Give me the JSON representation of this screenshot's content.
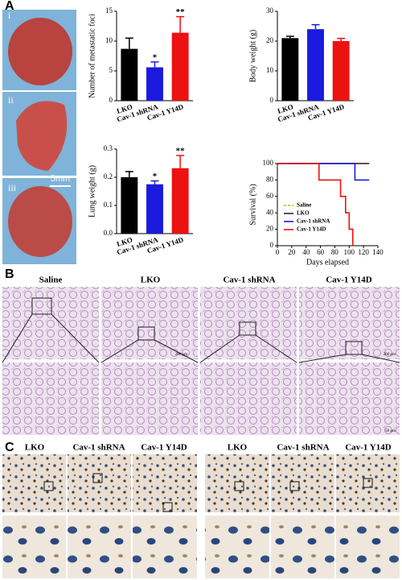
{
  "panels": {
    "A": {
      "label": "A",
      "photo_labels": [
        "i",
        "ii",
        "iii"
      ],
      "scale_bar": "5mm"
    },
    "B": {
      "label": "B",
      "columns": [
        "Saline",
        "LKO",
        "Cav-1 shRNA",
        "Cav-1 Y14D"
      ],
      "scale_top": "200 μm",
      "scale_bottom": "50 μm"
    },
    "C": {
      "label": "C",
      "columns": [
        "LKO",
        "Cav-1 shRNA",
        "Cav-1 Y14D"
      ]
    }
  },
  "chart_data": [
    {
      "type": "bar",
      "y_label": "Number of metastatic foci",
      "categories": [
        "LKO",
        "Cav-1 shRNA",
        "Cav-1 Y14D"
      ],
      "values": [
        8.7,
        5.6,
        11.4
      ],
      "errors": [
        1.8,
        0.9,
        2.7
      ],
      "colors": [
        "#000000",
        "#1a1adf",
        "#ee1111"
      ],
      "ylim": [
        0,
        15
      ],
      "yticks": [
        0,
        5,
        10,
        15
      ],
      "annotations": [
        {
          "category": "Cav-1 shRNA",
          "text": "*"
        },
        {
          "category": "Cav-1 Y14D",
          "text": "**"
        }
      ]
    },
    {
      "type": "bar",
      "y_label": "Body weight (g)",
      "categories": [
        "LKO",
        "Cav-1 shRNA",
        "Cav-1 Y14D"
      ],
      "values": [
        21,
        24,
        20
      ],
      "errors": [
        0.6,
        1.5,
        0.9
      ],
      "colors": [
        "#000000",
        "#1a1adf",
        "#ee1111"
      ],
      "ylim": [
        0,
        30
      ],
      "yticks": [
        0,
        10,
        20,
        30
      ]
    },
    {
      "type": "bar",
      "y_label": "Lung weight (g)",
      "categories": [
        "LKO",
        "Cav-1 shRNA",
        "Cav-1 Y14D"
      ],
      "values": [
        0.2,
        0.175,
        0.232
      ],
      "errors": [
        0.02,
        0.012,
        0.045
      ],
      "colors": [
        "#000000",
        "#1a1adf",
        "#ee1111"
      ],
      "ylim": [
        0,
        0.3
      ],
      "yticks": [
        {
          "value": 0,
          "label": "0.0"
        },
        0.1,
        0.2,
        0.3
      ],
      "annotations": [
        {
          "category": "Cav-1 shRNA",
          "text": "*"
        },
        {
          "category": "Cav-1 Y14D",
          "text": "**"
        }
      ]
    },
    {
      "type": "line",
      "x_label": "Days elapsed",
      "y_label": "Survival (%)",
      "xlim": [
        0,
        140
      ],
      "xticks": [
        0,
        20,
        40,
        60,
        80,
        100,
        120,
        140
      ],
      "ylim": [
        0,
        100
      ],
      "yticks": [
        0,
        20,
        40,
        60,
        80,
        100
      ],
      "legend": "lower left",
      "series": [
        {
          "name": "Saline",
          "color": "#c8b400",
          "dashed": true,
          "x": [
            0,
            128
          ],
          "values": [
            100,
            100
          ]
        },
        {
          "name": "LKO",
          "color": "#3a1a3a",
          "x": [
            0,
            128
          ],
          "values": [
            100,
            100
          ]
        },
        {
          "name": "Cav-1 shRNA",
          "color": "#1a1adf",
          "x": [
            0,
            108,
            108,
            128
          ],
          "values": [
            100,
            100,
            80,
            80
          ]
        },
        {
          "name": "Cav-1 Y14D",
          "color": "#ee1111",
          "x": [
            0,
            58,
            58,
            88,
            88,
            95,
            95,
            100,
            100,
            105,
            105
          ],
          "values": [
            100,
            100,
            80,
            80,
            60,
            60,
            40,
            40,
            20,
            20,
            0
          ]
        }
      ]
    }
  ]
}
